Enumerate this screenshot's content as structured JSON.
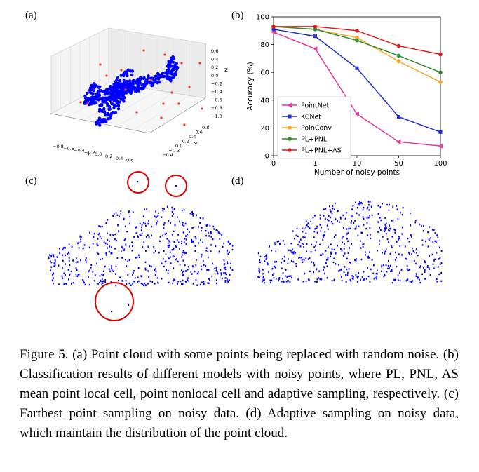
{
  "panels": {
    "a": "(a)",
    "b": "(b)",
    "c": "(c)",
    "d": "(d)"
  },
  "caption": "Figure 5. (a) Point cloud with some points being replaced with random noise. (b) Classification results of different models with noisy points, where PL, PNL, AS mean point local cell, point nonlocal cell and adaptive sampling, respectively. (c) Farthest point sampling on noisy data. (d) Adaptive sampling on noisy data, which maintain the distribution of the point cloud.",
  "plot_a": {
    "x_axis_label": "X",
    "y_axis_label": "Y",
    "z_axis_label": "Z",
    "x_ticks": [
      "−0.8",
      "−0.6",
      "−0.4",
      "−0.2",
      "0.0",
      "0.2",
      "0.4",
      "0.6"
    ],
    "y_ticks": [
      "−0.4",
      "−0.2",
      "0.0",
      "0.2",
      "0.4",
      "0.6",
      "0.8"
    ],
    "z_ticks": [
      "0.6",
      "0.4",
      "0.2",
      "0.0",
      "−0.2",
      "−0.4",
      "−0.6",
      "−0.8",
      "−1.0"
    ],
    "point_color": "#0000ff",
    "noise_color": "#ff3333"
  },
  "chart_data": {
    "type": "line",
    "title": "",
    "xlabel": "Number of noisy points",
    "ylabel": "Accuracy (%)",
    "categories": [
      "0",
      "1",
      "10",
      "50",
      "100"
    ],
    "yticks": [
      "0",
      "20",
      "40",
      "60",
      "80",
      "100"
    ],
    "ylim": [
      0,
      100
    ],
    "grid": false,
    "legend_position": "bottom-left",
    "series": [
      {
        "name": "PointNet",
        "color": "#e6399b",
        "marker": "triangle-left",
        "values": [
          89,
          77,
          30,
          10,
          7
        ]
      },
      {
        "name": "KCNet",
        "color": "#1f2fd0",
        "marker": "square",
        "values": [
          91,
          86,
          63,
          28,
          17
        ]
      },
      {
        "name": "PoinConv",
        "color": "#f5a623",
        "marker": "circle",
        "values": [
          93,
          91,
          85,
          68,
          53
        ]
      },
      {
        "name": "PL+PNL",
        "color": "#2e8b2e",
        "marker": "circle",
        "values": [
          93,
          91,
          83,
          72,
          60
        ]
      },
      {
        "name": "PL+PNL+AS",
        "color": "#e02020",
        "marker": "circle",
        "values": [
          93,
          93,
          90,
          79,
          73
        ]
      }
    ]
  }
}
